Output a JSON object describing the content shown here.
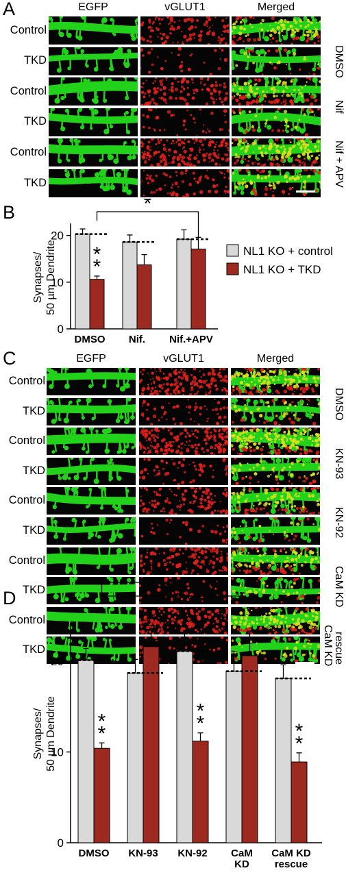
{
  "figure": {
    "panel_labels": [
      "A",
      "B",
      "C",
      "D"
    ],
    "micrograph_columns": [
      "EGFP",
      "vGLUT1",
      "Merged"
    ],
    "colors": {
      "egfp": "#22d11a",
      "vglut1": "#e0201a",
      "merged_yellow": "#d8e020",
      "control_bar": "#d9d9d9",
      "tkd_bar": "#9c2a20"
    }
  },
  "panelA": {
    "rows": [
      "Control",
      "TKD",
      "Control",
      "TKD",
      "Control",
      "TKD"
    ],
    "conditions": [
      "DMSO",
      "Nif",
      "Nif + APV"
    ]
  },
  "panelC": {
    "rows": [
      "Control",
      "TKD",
      "Control",
      "TKD",
      "Control",
      "TKD",
      "Control",
      "TKD",
      "Control",
      "TKD"
    ],
    "conditions": [
      "DMSO",
      "KN-93",
      "KN-92",
      "CaM KD",
      "CaM KD rescue"
    ],
    "conditions_lines": [
      [
        "DMSO"
      ],
      [
        "KN-93"
      ],
      [
        "KN-92"
      ],
      [
        "CaM KD"
      ],
      [
        "CaM KD",
        "rescue"
      ]
    ]
  },
  "chart_data": [
    {
      "panel": "B",
      "type": "bar",
      "categories": [
        "DMSO",
        "Nif.",
        "Nif.+APV"
      ],
      "ylabel": "Synapses/ 50 µm Dendrite",
      "ylabel_lines": [
        "Synapses/",
        "50 µm Dendrite"
      ],
      "ylim": [
        0,
        22
      ],
      "yticks": [
        0,
        10,
        20
      ],
      "series": [
        {
          "name": "NL1 KO + control",
          "values": [
            20.3,
            18.6,
            19.2
          ],
          "errors": [
            1.1,
            1.5,
            2.0
          ]
        },
        {
          "name": "NL1 KO + TKD",
          "values": [
            10.6,
            13.7,
            17.1
          ],
          "errors": [
            0.7,
            2.2,
            2.5
          ]
        }
      ],
      "significance": [
        "**",
        "",
        ""
      ],
      "brackets": [
        {
          "from": "DMSO",
          "to": "Nif.+APV",
          "label": "*"
        }
      ],
      "legend": "right"
    },
    {
      "panel": "D",
      "type": "bar",
      "categories": [
        "DMSO",
        "KN-93",
        "KN-92",
        "CaM KD",
        "CaM KD rescue"
      ],
      "category_lines": [
        [
          "DMSO"
        ],
        [
          "KN-93"
        ],
        [
          "KN-92"
        ],
        [
          "CaM",
          "KD"
        ],
        [
          "CaM KD",
          "rescue"
        ]
      ],
      "ylabel": "Synapses/ 50 µm Dendrite",
      "ylabel_lines": [
        "Synapses/",
        "50 µm Dendrite"
      ],
      "ylim": [
        0,
        24
      ],
      "yticks": [
        0,
        10,
        20
      ],
      "series": [
        {
          "name": "NL1 KO + control",
          "values": [
            20.1,
            18.7,
            21.1,
            18.9,
            18.1
          ],
          "errors": [
            1.3,
            1.5,
            1.9,
            2.2,
            1.5
          ]
        },
        {
          "name": "NL1 KO + TKD",
          "values": [
            10.4,
            21.6,
            11.2,
            20.6,
            8.9
          ],
          "errors": [
            0.6,
            2.3,
            0.9,
            2.7,
            1.0
          ]
        }
      ],
      "significance": [
        "**",
        "",
        "**",
        "",
        "**"
      ],
      "brackets": [
        {
          "from": "DMSO",
          "to": "KN-93",
          "label": "*"
        },
        {
          "from": "DMSO",
          "to": "CaM KD",
          "label": "*"
        }
      ]
    }
  ]
}
